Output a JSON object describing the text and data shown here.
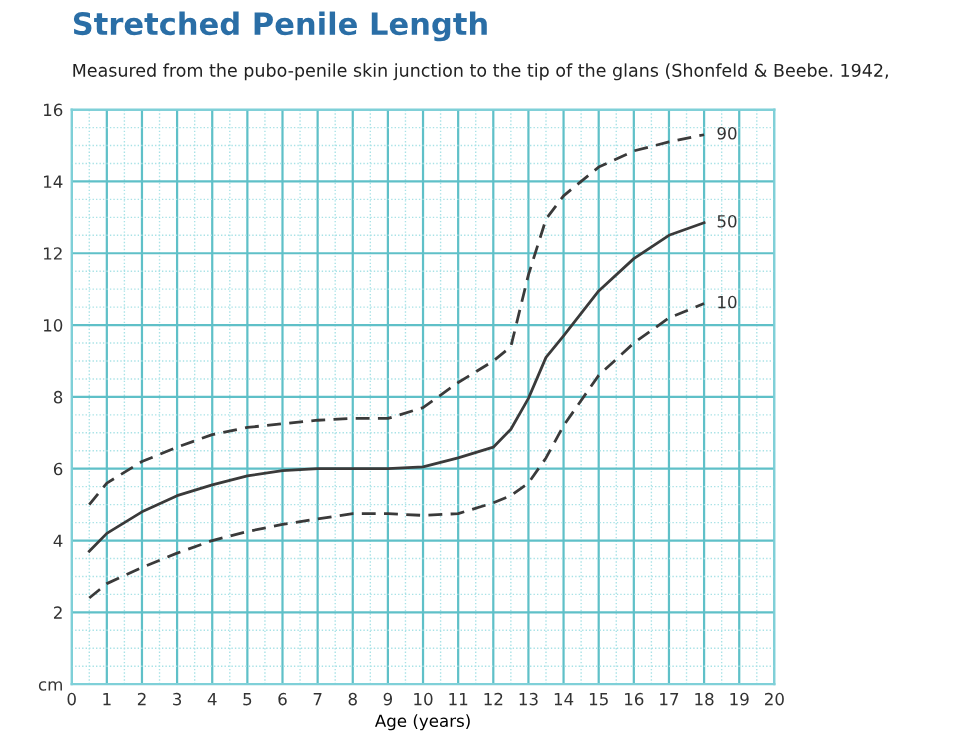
{
  "chart_data": {
    "type": "line",
    "title": "Stretched Penile Length",
    "subtitle": "Measured from the pubo-penile skin junction to the tip of the glans (Shonfeld & Beebe. 1942,",
    "xlabel": "Age (years)",
    "x": [
      0.5,
      1,
      2,
      3,
      4,
      5,
      6,
      7,
      8,
      9,
      10,
      11,
      12,
      12.5,
      13,
      13.5,
      14,
      15,
      16,
      17,
      18
    ],
    "series": [
      {
        "name": "90",
        "color": "#3a3a3a",
        "line_style": "dashed",
        "values": [
          5.0,
          5.6,
          6.2,
          6.6,
          6.95,
          7.15,
          7.25,
          7.35,
          7.4,
          7.4,
          7.7,
          8.4,
          9.0,
          9.4,
          11.4,
          12.95,
          13.6,
          14.4,
          14.85,
          15.1,
          15.3
        ]
      },
      {
        "name": "50",
        "color": "#3a3a3a",
        "line_style": "solid",
        "values": [
          3.7,
          4.2,
          4.8,
          5.25,
          5.55,
          5.8,
          5.95,
          6.0,
          6.0,
          6.0,
          6.05,
          6.3,
          6.6,
          7.1,
          7.96,
          9.1,
          9.7,
          10.95,
          11.85,
          12.5,
          12.85
        ]
      },
      {
        "name": "10",
        "color": "#3a3a3a",
        "line_style": "dashed",
        "values": [
          2.4,
          2.8,
          3.25,
          3.65,
          4.0,
          4.25,
          4.45,
          4.6,
          4.75,
          4.75,
          4.7,
          4.75,
          5.05,
          5.25,
          5.6,
          6.3,
          7.2,
          8.6,
          9.5,
          10.2,
          10.6
        ]
      }
    ],
    "xlim": [
      0,
      20
    ],
    "ylim": [
      0,
      16
    ],
    "xticks": [
      0,
      {
        "value": 0.5,
        "label": null
      },
      1,
      {
        "value": 1.5,
        "label": null
      },
      2,
      {
        "value": 2.5,
        "label": null
      },
      3,
      {
        "value": 3.5,
        "label": null
      },
      4,
      {
        "value": 4.5,
        "label": null
      },
      5,
      {
        "value": 5.5,
        "label": null
      },
      6,
      {
        "value": 6.5,
        "label": null
      },
      7,
      {
        "value": 7.5,
        "label": null
      },
      8,
      {
        "value": 8.5,
        "label": null
      },
      9,
      {
        "value": 9.5,
        "label": null
      },
      10,
      {
        "value": 10.5,
        "label": null
      },
      11,
      {
        "value": 11.5,
        "label": null
      },
      12,
      {
        "value": 12.5,
        "label": null
      },
      13,
      {
        "value": 13.5,
        "label": null
      },
      14,
      {
        "value": 14.5,
        "label": null
      },
      15,
      {
        "value": 15.5,
        "label": null
      },
      16,
      {
        "value": 16.5,
        "label": null
      },
      17,
      {
        "value": 17.5,
        "label": null
      },
      18,
      {
        "value": 18.5,
        "label": null
      },
      19,
      {
        "value": 19.5,
        "label": null
      },
      20
    ],
    "yticks": [
      {
        "value": 0,
        "label": "cm"
      },
      {
        "value": 0.5,
        "label": null
      },
      {
        "value": 1,
        "label": null
      },
      {
        "value": 1.5,
        "label": null
      },
      2,
      {
        "value": 2.5,
        "label": null
      },
      {
        "value": 3,
        "label": null
      },
      {
        "value": 3.5,
        "label": null
      },
      4,
      {
        "value": 4.5,
        "label": null
      },
      {
        "value": 5,
        "label": null
      },
      {
        "value": 5.5,
        "label": null
      },
      6,
      {
        "value": 6.5,
        "label": null
      },
      {
        "value": 7,
        "label": null
      },
      {
        "value": 7.5,
        "label": null
      },
      8,
      {
        "value": 8.5,
        "label": null
      },
      {
        "value": 9,
        "label": null
      },
      {
        "value": 9.5,
        "label": null
      },
      10,
      {
        "value": 10.5,
        "label": null
      },
      {
        "value": 11,
        "label": null
      },
      {
        "value": 11.5,
        "label": null
      },
      12,
      {
        "value": 12.5,
        "label": null
      },
      {
        "value": 13,
        "label": null
      },
      {
        "value": 13.5,
        "label": null
      },
      14,
      {
        "value": 14.5,
        "label": null
      },
      {
        "value": 15,
        "label": null
      },
      {
        "value": 15.5,
        "label": null
      },
      16
    ],
    "grid": true,
    "legend": false,
    "marker": "none"
  }
}
